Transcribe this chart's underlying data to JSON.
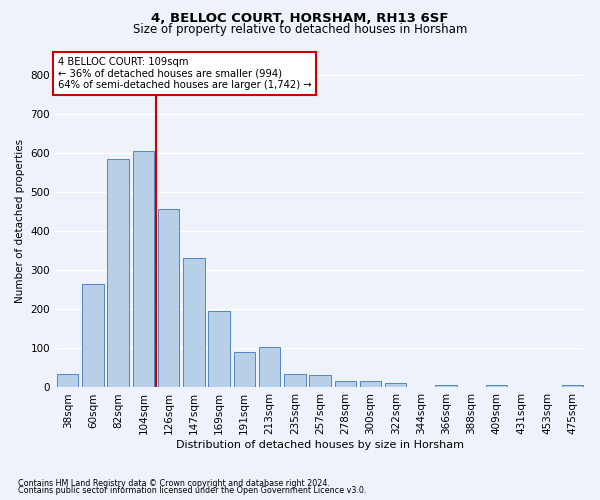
{
  "title1": "4, BELLOC COURT, HORSHAM, RH13 6SF",
  "title2": "Size of property relative to detached houses in Horsham",
  "xlabel": "Distribution of detached houses by size in Horsham",
  "ylabel": "Number of detached properties",
  "footnote1": "Contains HM Land Registry data © Crown copyright and database right 2024.",
  "footnote2": "Contains public sector information licensed under the Open Government Licence v3.0.",
  "categories": [
    "38sqm",
    "60sqm",
    "82sqm",
    "104sqm",
    "126sqm",
    "147sqm",
    "169sqm",
    "191sqm",
    "213sqm",
    "235sqm",
    "257sqm",
    "278sqm",
    "300sqm",
    "322sqm",
    "344sqm",
    "366sqm",
    "388sqm",
    "409sqm",
    "431sqm",
    "453sqm",
    "475sqm"
  ],
  "values": [
    35,
    265,
    585,
    605,
    455,
    330,
    195,
    90,
    103,
    35,
    32,
    16,
    16,
    12,
    0,
    6,
    0,
    6,
    0,
    0,
    6
  ],
  "bar_color": "#b8cfe8",
  "bar_edge_color": "#5585c5",
  "vline_x": 3.5,
  "vline_color": "#cc0000",
  "annotation_title": "4 BELLOC COURT: 109sqm",
  "annotation_line1": "← 36% of detached houses are smaller (994)",
  "annotation_line2": "64% of semi-detached houses are larger (1,742) →",
  "annotation_box_color": "#cc0000",
  "ylim": [
    0,
    850
  ],
  "yticks": [
    0,
    100,
    200,
    300,
    400,
    500,
    600,
    700,
    800
  ],
  "bg_color": "#eef2fa",
  "plot_bg_color": "#eef2fa",
  "grid_color": "#ffffff"
}
